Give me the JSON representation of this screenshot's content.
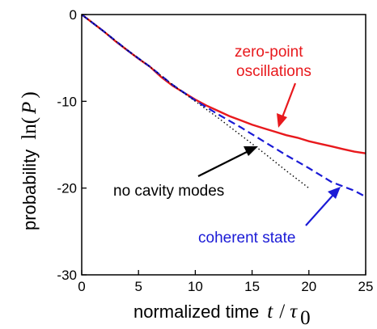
{
  "chart_data": {
    "type": "line",
    "title": "",
    "xlabel": "normalized time",
    "xlabel_symbol": "t",
    "xlabel_sep": "/",
    "xlabel_tau": "τ",
    "xlabel_sub": "0",
    "ylabel": "probability",
    "ylabel_fn": "ln(",
    "ylabel_sym": "P",
    "ylabel_close": ")",
    "xlim": [
      0,
      25
    ],
    "ylim": [
      -30,
      0
    ],
    "xticks": [
      0,
      5,
      10,
      15,
      20,
      25
    ],
    "yticks": [
      0,
      -10,
      -20,
      -30
    ],
    "grid": false,
    "series": [
      {
        "name": "zero-point oscillations",
        "color": "#e8191d",
        "style": "solid",
        "x": [
          0,
          1,
          2,
          3,
          4,
          5,
          6,
          7,
          8,
          9,
          10,
          11,
          12,
          13,
          14,
          15,
          16,
          17,
          18,
          19,
          20,
          21,
          22,
          23,
          24,
          25
        ],
        "y": [
          0,
          -1.0,
          -2.0,
          -3.1,
          -4.1,
          -5.1,
          -6.0,
          -7.2,
          -8.2,
          -9.0,
          -9.8,
          -10.5,
          -11.1,
          -11.7,
          -12.2,
          -12.7,
          -13.1,
          -13.5,
          -13.9,
          -14.2,
          -14.6,
          -14.9,
          -15.2,
          -15.5,
          -15.8,
          -16.0
        ]
      },
      {
        "name": "coherent state",
        "color": "#1a1ad6",
        "style": "dashed",
        "x": [
          0,
          2,
          4,
          6,
          8,
          10,
          12,
          14,
          16,
          18,
          20,
          22,
          24,
          25
        ],
        "y": [
          0,
          -2.0,
          -4.1,
          -6.0,
          -8.1,
          -9.9,
          -11.5,
          -13.0,
          -14.6,
          -16.2,
          -17.7,
          -19.3,
          -20.3,
          -21.0
        ]
      },
      {
        "name": "no cavity modes",
        "color": "#000000",
        "style": "dotted",
        "x": [
          0,
          2,
          4,
          6,
          8,
          10,
          12,
          14,
          16,
          18,
          20
        ],
        "y": [
          0,
          -2.0,
          -4.1,
          -6.0,
          -8.1,
          -10.0,
          -11.9,
          -13.9,
          -15.9,
          -18.0,
          -20.0
        ]
      }
    ],
    "annotations": [
      {
        "text": "zero-point",
        "color": "#e8191d"
      },
      {
        "text": "oscillations",
        "color": "#e8191d"
      },
      {
        "text": "no cavity modes",
        "color": "#000000"
      },
      {
        "text": "coherent state",
        "color": "#1a1ad6"
      }
    ]
  }
}
